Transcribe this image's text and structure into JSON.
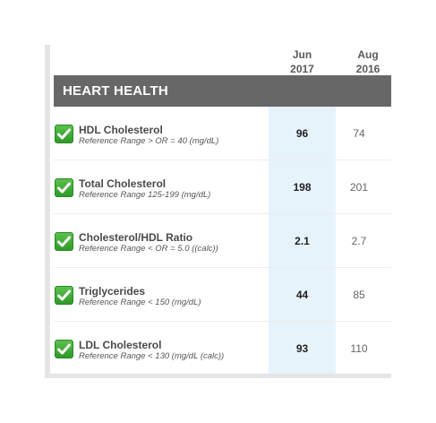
{
  "columns": {
    "latest": {
      "month": "Jun",
      "year": "2017"
    },
    "prior": {
      "month": "Aug",
      "year": "2016"
    }
  },
  "section": {
    "title": "HEART HEALTH"
  },
  "colors": {
    "header_bar": "#676767",
    "highlight_column": "#e6f3fb",
    "check_green": "#3aab33"
  },
  "rows": [
    {
      "name": "HDL Cholesterol",
      "range": "Reference Range > OR = 40 (mg/dL)",
      "latest": "96",
      "prior": "74",
      "icon": "checkmark-icon"
    },
    {
      "name": "Total Cholesterol",
      "range": "Reference Range 125-199 (mg/dL)",
      "latest": "198",
      "prior": "201",
      "icon": "checkmark-icon"
    },
    {
      "name": "Cholesterol/HDL Ratio",
      "range": "Reference Range < OR = 5.0 ((calc))",
      "latest": "2.1",
      "prior": "2.7",
      "icon": "checkmark-icon"
    },
    {
      "name": "Triglycerides",
      "range": "Reference Range < 150 (mg/dL)",
      "latest": "44",
      "prior": "85",
      "icon": "checkmark-icon"
    },
    {
      "name": "LDL Cholesterol",
      "range": "Reference Range < 130 (mg/dL (calc))",
      "latest": "93",
      "prior": "110",
      "icon": "checkmark-icon"
    }
  ]
}
